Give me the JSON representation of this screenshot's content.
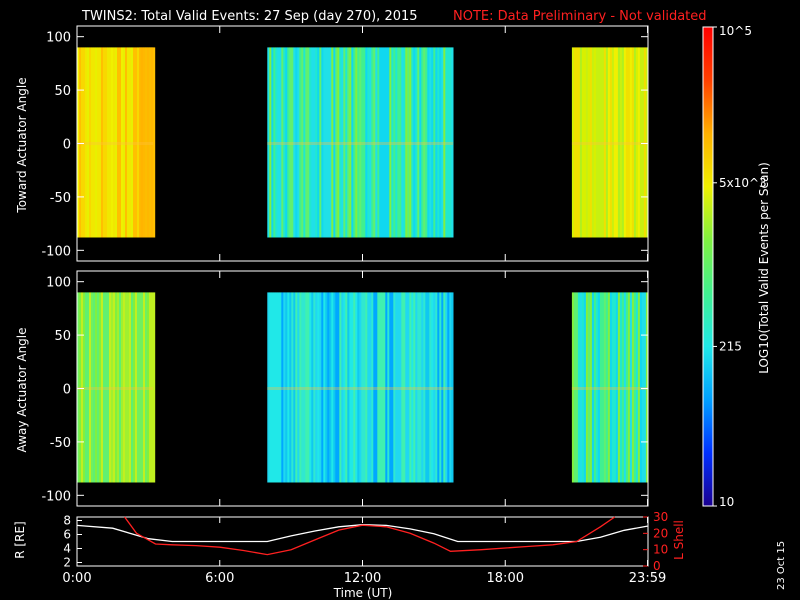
{
  "title": "TWINS2: Total Valid Events: 27 Sep (day 270), 2015",
  "note": "NOTE: Data Preliminary - Not validated",
  "date_stamp": "23 Oct 15",
  "chart_data": [
    {
      "type": "heatmap",
      "name": "toward",
      "ylabel": "Toward Actuator Angle",
      "ylim": [
        -110,
        110
      ],
      "y_ticks": [
        "100",
        "50",
        "0",
        "-50",
        "-100"
      ],
      "y_tick_values": [
        100,
        50,
        0,
        -50,
        -100
      ],
      "data_y_range": [
        -88,
        90
      ],
      "blocks": [
        {
          "x_start": 0.0,
          "x_end": 3.2,
          "level": "yellow-orange"
        },
        {
          "x_start": 8.0,
          "x_end": 15.8,
          "level": "green-cyan"
        },
        {
          "x_start": 20.8,
          "x_end": 23.98,
          "level": "yellow-green"
        }
      ]
    },
    {
      "type": "heatmap",
      "name": "away",
      "ylabel": "Away Actuator Angle",
      "ylim": [
        -110,
        110
      ],
      "y_ticks": [
        "100",
        "50",
        "0",
        "-50",
        "-100"
      ],
      "y_tick_values": [
        100,
        50,
        0,
        -50,
        -100
      ],
      "data_y_range": [
        -88,
        90
      ],
      "blocks": [
        {
          "x_start": 0.0,
          "x_end": 3.2,
          "level": "green-yellow"
        },
        {
          "x_start": 8.0,
          "x_end": 15.8,
          "level": "cyan-blue"
        },
        {
          "x_start": 20.8,
          "x_end": 23.98,
          "level": "green-cyan"
        }
      ]
    },
    {
      "type": "line",
      "name": "orbit",
      "ylabel_left": "R [RE]",
      "ylabel_right": "L Shell",
      "left_ticks": [
        "8",
        "6",
        "4",
        "2"
      ],
      "left_tick_values": [
        8,
        6,
        4,
        2
      ],
      "left_ylim": [
        1.5,
        8.5
      ],
      "right_ticks": [
        "30",
        "20",
        "10",
        "0"
      ],
      "right_tick_values": [
        30,
        20,
        10,
        0
      ],
      "right_ylim": [
        0,
        30
      ],
      "series": [
        {
          "color": "#ffffff",
          "axis": "left",
          "x": [
            0,
            1.5,
            3,
            4,
            5,
            6,
            7,
            8,
            9,
            10,
            11,
            12,
            13,
            14,
            15,
            16,
            17,
            18,
            19,
            20,
            21,
            22,
            23,
            23.98
          ],
          "y": [
            7.3,
            6.9,
            5.4,
            5.0,
            5.0,
            5.0,
            5.0,
            5.0,
            5.8,
            6.5,
            7.1,
            7.4,
            7.3,
            6.8,
            6.1,
            5.0,
            5.0,
            5.0,
            5.0,
            5.0,
            5.0,
            5.6,
            6.6,
            7.2
          ]
        },
        {
          "color": "#ff2020",
          "axis": "right",
          "x": [
            2.0,
            2.5,
            3.3,
            4,
            5,
            6,
            7,
            8,
            9,
            10,
            11,
            12,
            13,
            14,
            15,
            15.7,
            17,
            18,
            19,
            20,
            21,
            22,
            22.6
          ],
          "y": [
            30,
            20,
            13.5,
            13,
            12.5,
            11.5,
            9.5,
            7,
            10,
            16,
            22,
            25,
            24,
            20,
            14,
            9,
            10,
            11,
            12,
            13,
            15,
            24,
            30
          ]
        }
      ]
    }
  ],
  "x_axis": {
    "label": "Time (UT)",
    "ticks": [
      "0:00",
      "6:00",
      "12:00",
      "18:00",
      "23:59"
    ],
    "tick_values": [
      0,
      6,
      12,
      18,
      23.98
    ],
    "xlim": [
      0,
      24
    ]
  },
  "colorbar": {
    "label": "LOG10(Total Valid Events per Scan)",
    "ticks": [
      "10^5",
      "5x10^3",
      "215",
      "10"
    ],
    "tick_values": [
      100000,
      5000,
      215,
      10
    ],
    "range": [
      10,
      100000
    ],
    "scale": "log",
    "colors": [
      "#1a0090",
      "#0030ff",
      "#00a0ff",
      "#20e8e8",
      "#40f090",
      "#80f040",
      "#f0f000",
      "#ffb000",
      "#ff4000",
      "#ff0000"
    ]
  }
}
